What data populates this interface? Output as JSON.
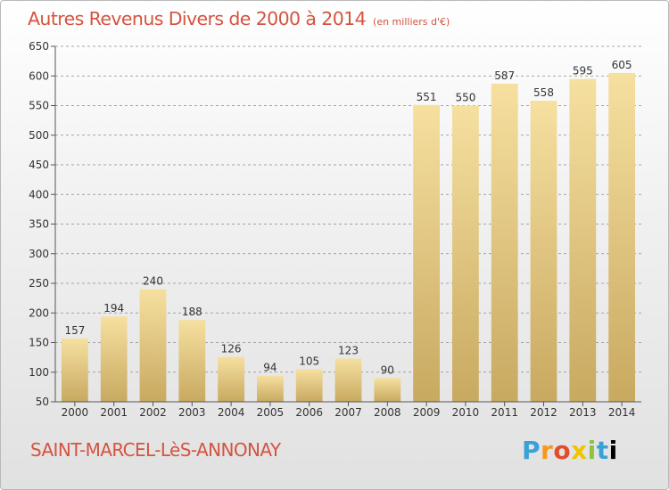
{
  "header": {
    "title": "Autres Revenus Divers de 2000 à 2014",
    "subtitle": "(en milliers d'€)"
  },
  "footer": {
    "commune": "SAINT-MARCEL-LèS-ANNONAY",
    "logo": "Proxiti"
  },
  "colors": {
    "title": "#d5533f",
    "bar_light": "#f6e0a0",
    "bar_dark": "#c8a960",
    "grid": "#8a8a8a"
  },
  "chart_data": {
    "type": "bar",
    "title": "Autres Revenus Divers de 2000 à 2014",
    "subtitle": "(en milliers d'€)",
    "xlabel": "",
    "ylabel": "",
    "categories": [
      "2000",
      "2001",
      "2002",
      "2003",
      "2004",
      "2005",
      "2006",
      "2007",
      "2008",
      "2009",
      "2010",
      "2011",
      "2012",
      "2013",
      "2014"
    ],
    "values": [
      157,
      194,
      240,
      188,
      126,
      94,
      105,
      123,
      90,
      551,
      550,
      587,
      558,
      595,
      605
    ],
    "data_labels": [
      "157",
      "194",
      "240",
      "188",
      "126",
      "94",
      "105",
      "123",
      "90",
      "551",
      "550",
      "587",
      "558",
      "595",
      "605"
    ],
    "ylim": [
      50,
      650
    ],
    "yticks": [
      50,
      100,
      150,
      200,
      250,
      300,
      350,
      400,
      450,
      500,
      550,
      600,
      650
    ],
    "ytick_labels": [
      "50",
      "100",
      "150",
      "200",
      "250",
      "300",
      "350",
      "400",
      "450",
      "500",
      "550",
      "600",
      "650"
    ],
    "grid": true,
    "legend": "none"
  }
}
